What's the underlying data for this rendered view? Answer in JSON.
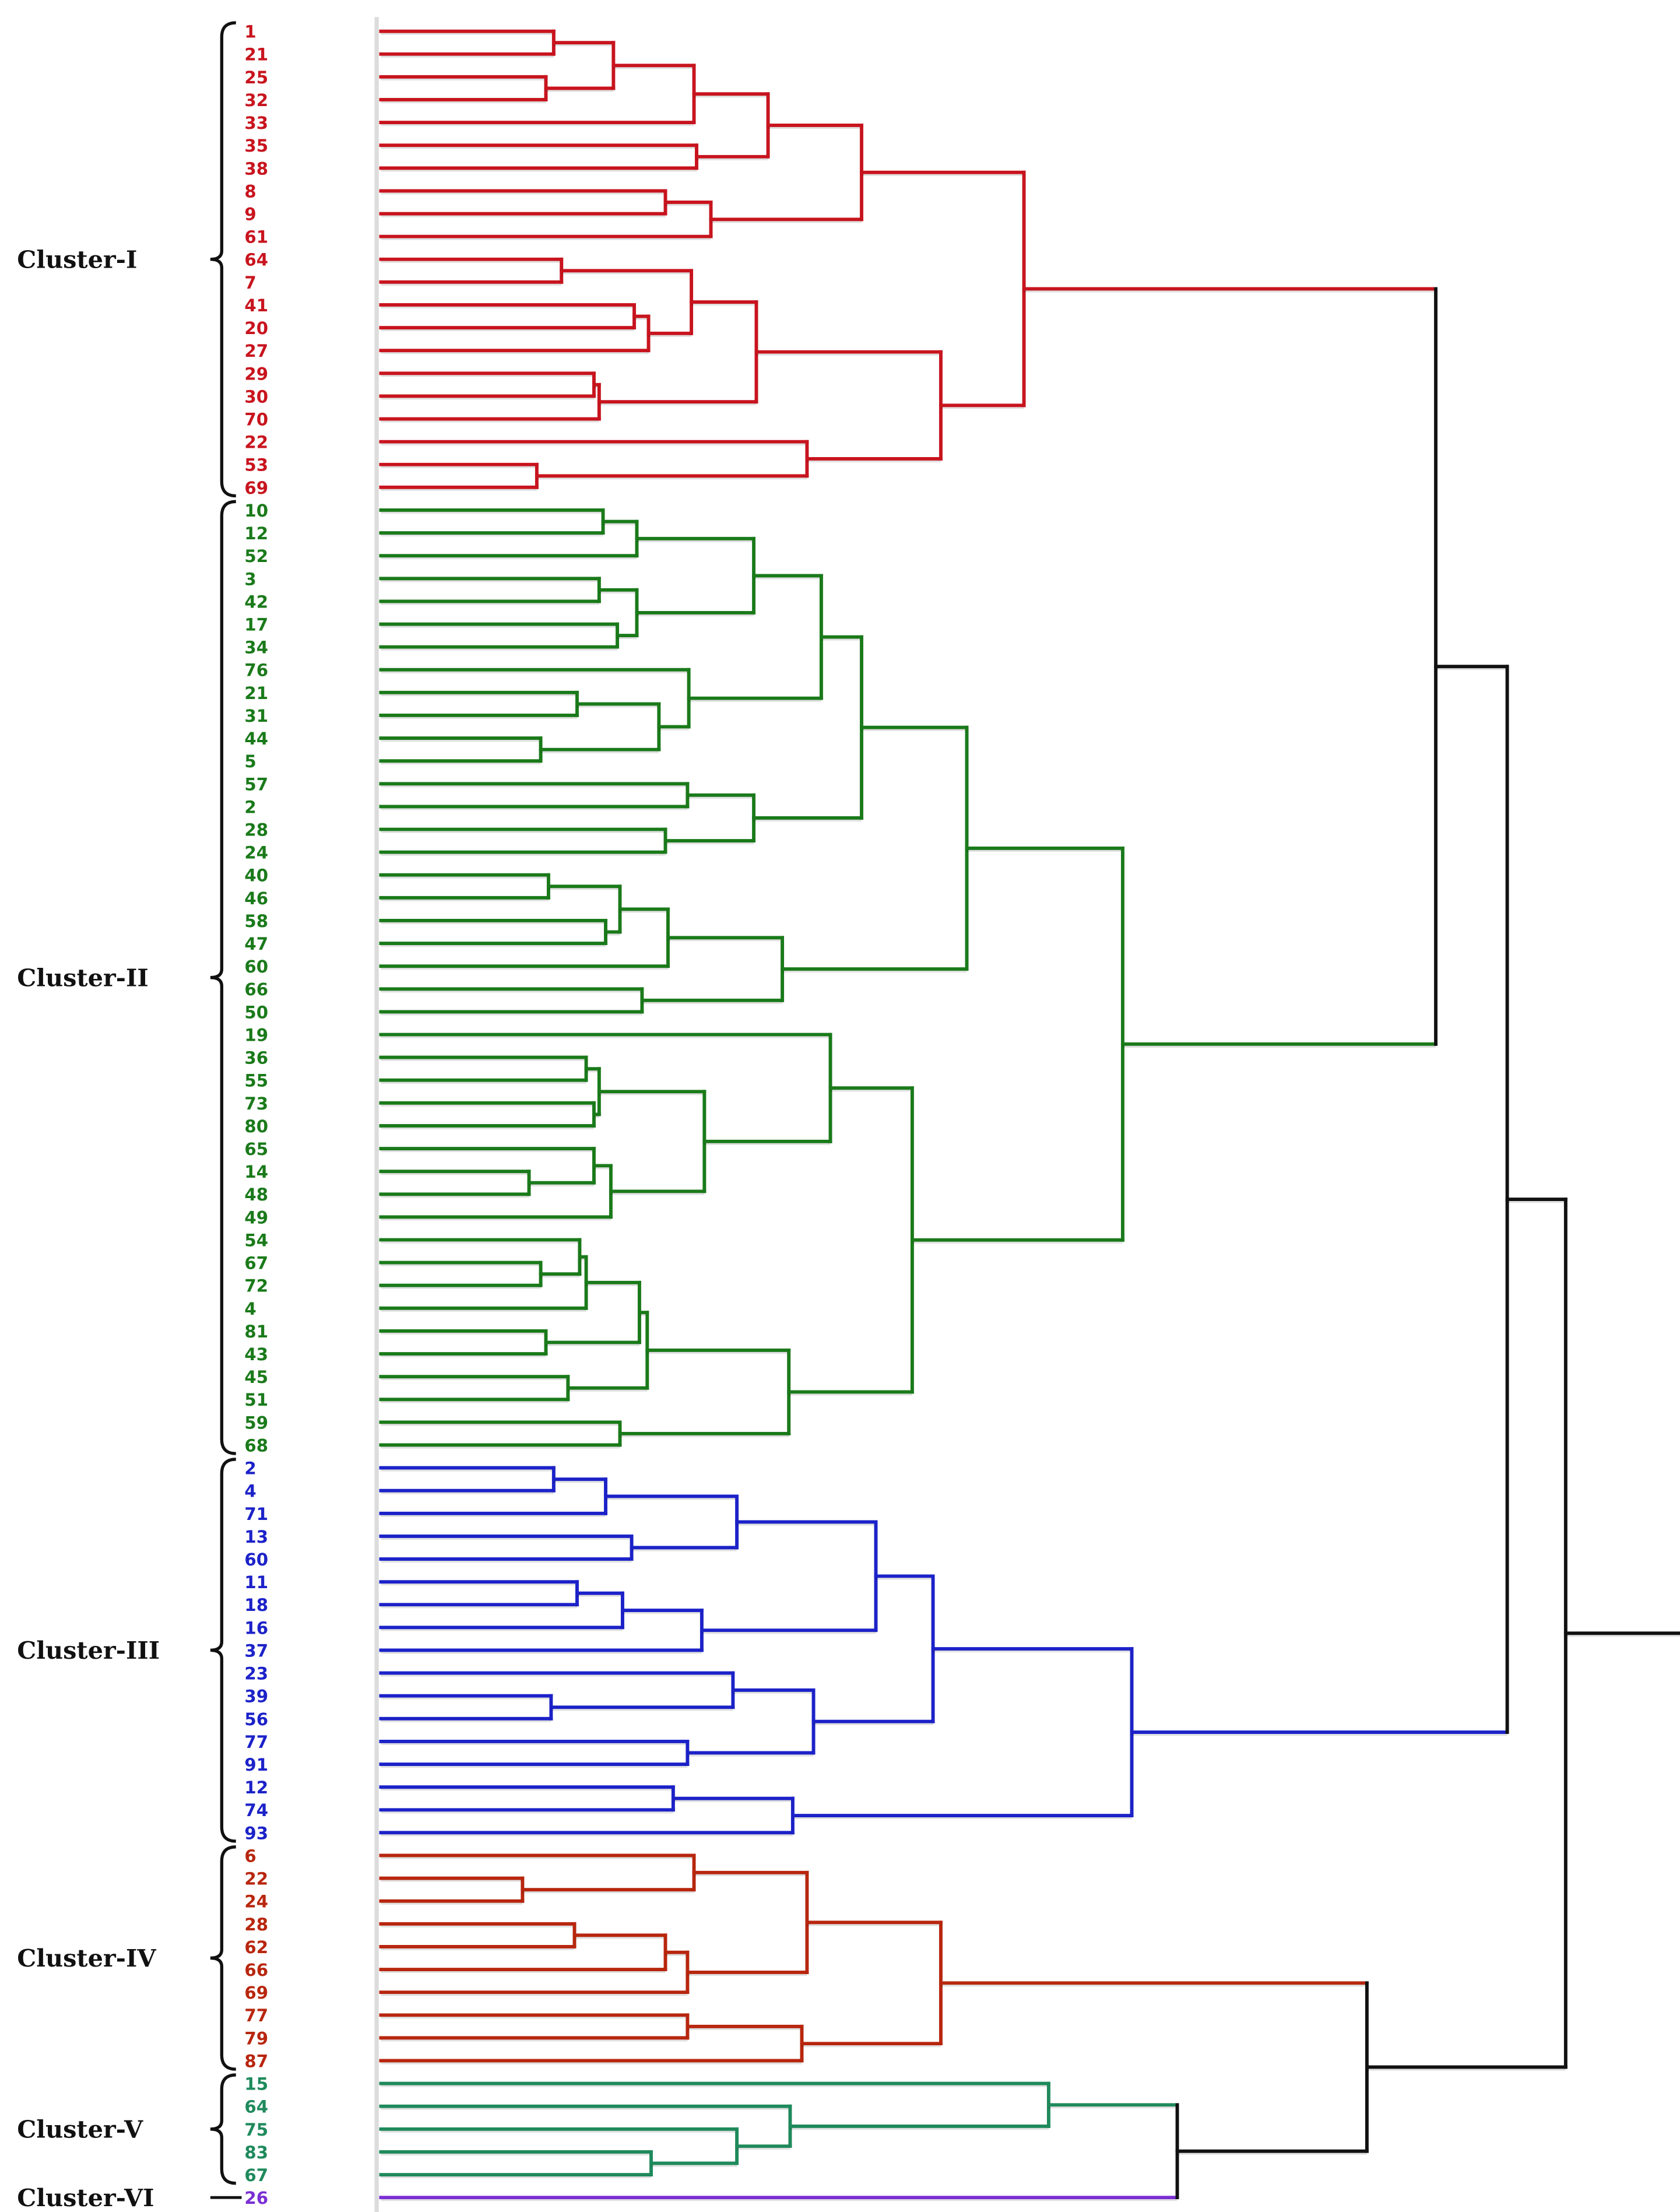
{
  "diagram": {
    "type": "dendrogram",
    "orientation": "leaves-left",
    "link_color_above_clusters": "#111111",
    "clusters": [
      {
        "id": "I",
        "name": "Cluster-I",
        "color": "#c8141e",
        "leaves": [
          "1",
          "21",
          "25",
          "32",
          "33",
          "35",
          "38",
          "8",
          "9",
          "61",
          "64",
          "7",
          "41",
          "20",
          "27",
          "29",
          "30",
          "70",
          "22",
          "53",
          "69"
        ],
        "tree": [
          49.5,
          [
            37.0,
            [
              29.8,
              [
                24.1,
                [
                  17.9,
                  [
                    13.3,
                    0,
                    1
                  ],
                  [
                    12.7,
                    2,
                    3
                  ]
                ],
                4
              ],
              [
                24.3,
                5,
                6
              ]
            ],
            [
              25.4,
              [
                21.9,
                7,
                8
              ],
              9
            ]
          ],
          [
            43.1,
            [
              28.9,
              [
                23.9,
                [
                  13.9,
                  10,
                  11
                ],
                [
                  20.6,
                  [
                    19.5,
                    12,
                    13
                  ],
                  14
                ]
              ],
              [
                16.8,
                [
                  16.4,
                  15,
                  16
                ],
                17
              ]
            ],
            [
              32.8,
              18,
              [
                12.0,
                19,
                20
              ]
            ]
          ]
        ]
      },
      {
        "id": "II",
        "name": "Cluster-II",
        "color": "#1a7a1a",
        "leaves": [
          "10",
          "12",
          "52",
          "3",
          "42",
          "17",
          "34",
          "76",
          "21",
          "31",
          "44",
          "5",
          "57",
          "2",
          "28",
          "24",
          "40",
          "46",
          "58",
          "47",
          "60",
          "66",
          "50",
          "19",
          "36",
          "55",
          "73",
          "80",
          "65",
          "14",
          "48",
          "49",
          "54",
          "67",
          "72",
          "4",
          "81",
          "43",
          "45",
          "51",
          "59",
          "68"
        ],
        "tree": [
          57.1,
          [
            45.1,
            [
              37.0,
              [
                33.9,
                [
                  28.7,
                  [
                    19.7,
                    [
                      17.1,
                      0,
                      1
                    ],
                    2
                  ],
                  [
                    19.7,
                    [
                      16.8,
                      3,
                      4
                    ],
                    [
                      18.2,
                      5,
                      6
                    ]
                  ]
                ],
                [
                  23.7,
                  7,
                  [
                    21.4,
                    [
                      15.1,
                      8,
                      9
                    ],
                    [
                      12.3,
                      10,
                      11
                    ]
                  ]
                ]
              ],
              [
                28.7,
                [
                  23.6,
                  12,
                  13
                ],
                [
                  21.9,
                  14,
                  15
                ]
              ]
            ],
            [
              30.9,
              [
                22.1,
                [
                  18.4,
                  [
                    12.9,
                    16,
                    17
                  ],
                  [
                    17.3,
                    18,
                    19
                  ]
                ],
                20
              ],
              [
                20.1,
                21,
                22
              ]
            ]
          ],
          [
            40.9,
            [
              34.6,
              23,
              [
                24.9,
                [
                  16.8,
                  [
                    15.8,
                    24,
                    25
                  ],
                  [
                    16.4,
                    26,
                    27
                  ]
                ],
                [
                  17.7,
                  [
                    16.4,
                    28,
                    [
                      11.4,
                      29,
                      30
                    ]
                  ],
                  31
                ]
              ]
            ],
            [
              31.4,
              [
                20.5,
                [
                  19.9,
                  [
                    15.8,
                    [
                      15.3,
                      32,
                      [
                        12.3,
                        33,
                        34
                      ]
                    ],
                    35
                  ],
                  [
                    12.7,
                    36,
                    37
                  ]
                ],
                [
                  14.4,
                  38,
                  39
                ]
              ],
              [
                18.4,
                40,
                41
              ]
            ]
          ]
        ]
      },
      {
        "id": "III",
        "name": "Cluster-III",
        "color": "#1c22c8",
        "leaves": [
          "2",
          "4",
          "71",
          "13",
          "60",
          "11",
          "18",
          "16",
          "37",
          "23",
          "39",
          "56",
          "77",
          "91",
          "12",
          "74",
          "93"
        ],
        "tree": [
          57.8,
          [
            42.5,
            [
              38.1,
              [
                27.4,
                [
                  17.3,
                  [
                    13.3,
                    0,
                    1
                  ],
                  2
                ],
                [
                  19.3,
                  3,
                  4
                ]
              ],
              [
                24.7,
                [
                  18.6,
                  [
                    15.1,
                    5,
                    6
                  ],
                  7
                ],
                8
              ]
            ],
            [
              33.3,
              [
                27.1,
                9,
                [
                  13.1,
                  10,
                  11
                ]
              ],
              [
                23.6,
                12,
                13
              ]
            ]
          ],
          [
            31.7,
            [
              22.5,
              14,
              15
            ],
            16
          ]
        ]
      },
      {
        "id": "IV",
        "name": "Cluster-IV",
        "color": "#b8260e",
        "leaves": [
          "6",
          "22",
          "24",
          "28",
          "62",
          "66",
          "69",
          "77",
          "79",
          "87"
        ],
        "tree": [
          43.1,
          [
            32.8,
            [
              24.1,
              0,
              [
                10.9,
                1,
                2
              ]
            ],
            [
              23.6,
              [
                21.9,
                [
                  14.9,
                  3,
                  4
                ],
                5
              ],
              6
            ]
          ],
          [
            32.4,
            [
              23.6,
              7,
              8
            ],
            9
          ]
        ]
      },
      {
        "id": "V",
        "name": "Cluster-V",
        "color": "#1f8a5c",
        "leaves": [
          "15",
          "64",
          "75",
          "83",
          "67"
        ],
        "tree": [
          51.4,
          0,
          [
            31.5,
            1,
            [
              27.4,
              2,
              [
                20.8,
                3,
                4
              ]
            ]
          ]
        ]
      },
      {
        "id": "VI",
        "name": "Cluster-VI",
        "color": "#7a2fd2",
        "leaves": [
          "26"
        ],
        "tree": 0
      }
    ],
    "root": [
      91.2,
      [
        86.7,
        [
          81.2,
          "I",
          "II"
        ],
        "III"
      ],
      [
        75.9,
        "IV",
        [
          61.3,
          "V",
          "VI"
        ]
      ]
    ],
    "distance_max": 100
  }
}
